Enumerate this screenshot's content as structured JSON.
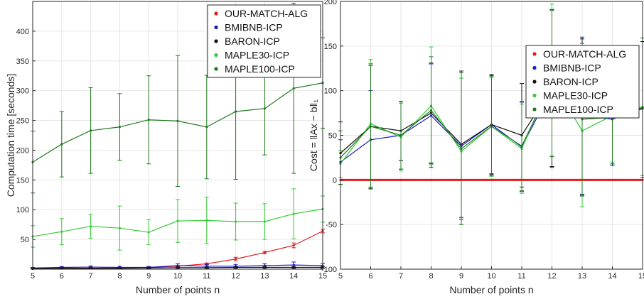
{
  "chart_data": [
    {
      "type": "line",
      "xlabel": "Number of points n",
      "ylabel": "Computation time [seconds]",
      "xlim": [
        5,
        15
      ],
      "ylim": [
        0,
        450
      ],
      "xticks": [
        5,
        6,
        7,
        8,
        9,
        10,
        11,
        12,
        13,
        14,
        15
      ],
      "yticks": [
        50,
        100,
        150,
        200,
        250,
        300,
        350,
        400
      ],
      "grid": true,
      "legend_position": "top-right",
      "x": [
        5,
        6,
        7,
        8,
        9,
        10,
        11,
        12,
        13,
        14,
        15
      ],
      "series": [
        {
          "name": "OUR-MATCH-ALG",
          "color": "#e41a1c",
          "values": [
            0.5,
            1,
            1.5,
            2,
            3,
            5,
            9,
            17,
            28,
            40,
            64
          ],
          "err": [
            0.5,
            0.5,
            0.5,
            0.5,
            1,
            1,
            1.5,
            3,
            2,
            4,
            3
          ]
        },
        {
          "name": "BMIBNB-ICP",
          "color": "#1a1acc",
          "values": [
            2,
            3,
            3.5,
            3,
            3,
            6,
            5,
            5,
            6,
            7,
            6
          ],
          "err": [
            1,
            1.5,
            2,
            2,
            1.5,
            3,
            3,
            3,
            3,
            5,
            4
          ]
        },
        {
          "name": "BARON-ICP",
          "color": "#111111",
          "values": [
            1,
            1.5,
            1.5,
            1.5,
            2,
            2.5,
            2.5,
            3,
            3,
            3,
            3
          ],
          "err": [
            0.5,
            1,
            1,
            1,
            1,
            1,
            1,
            1.5,
            1.5,
            1.5,
            1.5
          ]
        },
        {
          "name": "MAPLE30-ICP",
          "color": "#33cc33",
          "values": [
            55,
            63,
            72,
            69,
            62,
            81,
            82,
            80,
            80,
            93,
            101
          ],
          "err": [
            18,
            22,
            20,
            37,
            21,
            36,
            39,
            31,
            30,
            42,
            22
          ]
        },
        {
          "name": "MAPLE100-ICP",
          "color": "#1f7a1f",
          "values": [
            180,
            210,
            233,
            239,
            251,
            249,
            239,
            265,
            270,
            304,
            313
          ],
          "err": [
            52,
            55,
            72,
            56,
            74,
            110,
            87,
            114,
            78,
            143,
            76
          ]
        }
      ]
    },
    {
      "type": "line",
      "xlabel": "Number of points n",
      "ylabel": "Cost = ‖Ax − b‖₁",
      "xlim": [
        5,
        15
      ],
      "ylim": [
        -100,
        200
      ],
      "xticks": [
        5,
        6,
        7,
        8,
        9,
        10,
        11,
        12,
        13,
        14,
        15
      ],
      "yticks": [
        -100,
        -50,
        0,
        50,
        100,
        150,
        200
      ],
      "grid": true,
      "legend_position": "top-right",
      "x": [
        5,
        6,
        7,
        8,
        9,
        10,
        11,
        12,
        13,
        14,
        15
      ],
      "series": [
        {
          "name": "OUR-MATCH-ALG",
          "color": "#e41a1c",
          "values": [
            0,
            0,
            0,
            0,
            0,
            0,
            0,
            0,
            0,
            0,
            0
          ],
          "err": [
            0,
            0,
            0,
            0,
            0,
            0,
            0,
            0,
            0,
            0,
            0
          ]
        },
        {
          "name": "BMIBNB-ICP",
          "color": "#1a1acc",
          "values": [
            20,
            45,
            50,
            72,
            38,
            62,
            37,
            102,
            72,
            68,
            80
          ],
          "err": [
            25,
            55,
            38,
            58,
            82,
            55,
            50,
            88,
            88,
            52,
            75
          ]
        },
        {
          "name": "BARON-ICP",
          "color": "#111111",
          "values": [
            30,
            60,
            55,
            75,
            40,
            62,
            50,
            103,
            70,
            70,
            80
          ],
          "err": [
            35,
            70,
            33,
            56,
            82,
            56,
            58,
            88,
            88,
            52,
            75
          ]
        },
        {
          "name": "MAPLE30-ICP",
          "color": "#33cc33",
          "values": [
            18,
            63,
            48,
            83,
            32,
            60,
            35,
            112,
            55,
            72,
            82
          ],
          "err": [
            15,
            72,
            38,
            66,
            82,
            56,
            50,
            85,
            85,
            52,
            77
          ]
        },
        {
          "name": "MAPLE100-ICP",
          "color": "#1f7a1f",
          "values": [
            25,
            60,
            50,
            78,
            35,
            60,
            38,
            108,
            68,
            70,
            81
          ],
          "err": [
            30,
            68,
            38,
            60,
            85,
            55,
            50,
            82,
            85,
            52,
            78
          ]
        }
      ]
    }
  ]
}
